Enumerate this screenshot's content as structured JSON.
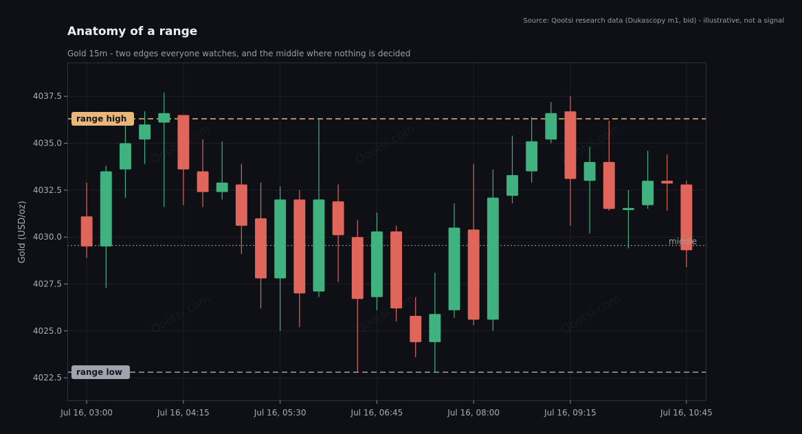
{
  "colors": {
    "background": "#0e1015",
    "grid": "#1c2028",
    "frame": "#2e323a",
    "up": "#3fb27f",
    "down": "#e0655a",
    "range_high": "#e9b779",
    "range_low": "#9ea3ad",
    "middle": "#8a8f98"
  },
  "chart_data": {
    "type": "candlestick",
    "title": "Anatomy of a range",
    "subtitle": "Gold 15m - two edges everyone watches, and the middle where nothing is decided",
    "source": "Source: Qootsi research data (Dukascopy m1, bid) - illustrative, not a signal",
    "ylabel": "Gold (USD/oz)",
    "xlabel": "",
    "watermark": "Qootsi.com",
    "ylim": [
      4021.3,
      4039.3
    ],
    "y_ticks": [
      4022.5,
      4025.0,
      4027.5,
      4030.0,
      4032.5,
      4035.0,
      4037.5
    ],
    "x_tick_labels": [
      "Jul 16, 03:00",
      "Jul 16, 04:15",
      "Jul 16, 05:30",
      "Jul 16, 06:45",
      "Jul 16, 08:00",
      "Jul 16, 09:15",
      "Jul 16, 10:45"
    ],
    "x_tick_index": [
      0,
      5,
      10,
      15,
      20,
      25,
      31
    ],
    "x_range": [
      -1.0,
      32.0
    ],
    "grid": true,
    "levels": {
      "range_high": {
        "label": "range high",
        "value": 4036.3
      },
      "range_low": {
        "label": "range low",
        "value": 4022.8
      },
      "middle": {
        "label": "middle",
        "value": 4029.55
      }
    },
    "candles": [
      {
        "t": "Jul 16, 03:00",
        "o": 4031.1,
        "h": 4032.9,
        "l": 4028.9,
        "c": 4029.5
      },
      {
        "t": "Jul 16, 03:15",
        "o": 4029.5,
        "h": 4033.8,
        "l": 4027.3,
        "c": 4033.5
      },
      {
        "t": "Jul 16, 03:30",
        "o": 4033.6,
        "h": 4036.4,
        "l": 4032.1,
        "c": 4035.0
      },
      {
        "t": "Jul 16, 03:45",
        "o": 4035.2,
        "h": 4036.7,
        "l": 4033.9,
        "c": 4036.0
      },
      {
        "t": "Jul 16, 04:00",
        "o": 4036.1,
        "h": 4037.7,
        "l": 4031.6,
        "c": 4036.6
      },
      {
        "t": "Jul 16, 04:15",
        "o": 4036.5,
        "h": 4036.5,
        "l": 4031.7,
        "c": 4033.6
      },
      {
        "t": "Jul 16, 04:30",
        "o": 4033.5,
        "h": 4035.2,
        "l": 4031.6,
        "c": 4032.4
      },
      {
        "t": "Jul 16, 04:45",
        "o": 4032.4,
        "h": 4035.1,
        "l": 4032.0,
        "c": 4032.9
      },
      {
        "t": "Jul 16, 05:00",
        "o": 4032.8,
        "h": 4033.9,
        "l": 4029.1,
        "c": 4030.6
      },
      {
        "t": "Jul 16, 05:15",
        "o": 4031.0,
        "h": 4032.9,
        "l": 4026.2,
        "c": 4027.8
      },
      {
        "t": "Jul 16, 05:30",
        "o": 4027.8,
        "h": 4032.7,
        "l": 4025.0,
        "c": 4032.0
      },
      {
        "t": "Jul 16, 05:45",
        "o": 4032.0,
        "h": 4032.5,
        "l": 4025.2,
        "c": 4027.0
      },
      {
        "t": "Jul 16, 06:00",
        "o": 4027.1,
        "h": 4036.3,
        "l": 4026.8,
        "c": 4032.0
      },
      {
        "t": "Jul 16, 06:15",
        "o": 4031.9,
        "h": 4032.8,
        "l": 4027.6,
        "c": 4030.1
      },
      {
        "t": "Jul 16, 06:30",
        "o": 4030.0,
        "h": 4030.9,
        "l": 4022.8,
        "c": 4026.7
      },
      {
        "t": "Jul 16, 06:45",
        "o": 4026.8,
        "h": 4031.3,
        "l": 4026.1,
        "c": 4030.3
      },
      {
        "t": "Jul 16, 07:00",
        "o": 4030.3,
        "h": 4030.6,
        "l": 4025.5,
        "c": 4026.2
      },
      {
        "t": "Jul 16, 07:15",
        "o": 4025.8,
        "h": 4026.8,
        "l": 4023.6,
        "c": 4024.4
      },
      {
        "t": "Jul 16, 07:30",
        "o": 4024.4,
        "h": 4028.1,
        "l": 4022.8,
        "c": 4025.9
      },
      {
        "t": "Jul 16, 07:45",
        "o": 4026.1,
        "h": 4031.8,
        "l": 4025.7,
        "c": 4030.5
      },
      {
        "t": "Jul 16, 08:00",
        "o": 4030.4,
        "h": 4033.9,
        "l": 4025.3,
        "c": 4025.6
      },
      {
        "t": "Jul 16, 08:15",
        "o": 4025.6,
        "h": 4033.6,
        "l": 4025.0,
        "c": 4032.1
      },
      {
        "t": "Jul 16, 08:30",
        "o": 4032.2,
        "h": 4035.4,
        "l": 4031.8,
        "c": 4033.3
      },
      {
        "t": "Jul 16, 08:45",
        "o": 4033.5,
        "h": 4036.4,
        "l": 4032.9,
        "c": 4035.1
      },
      {
        "t": "Jul 16, 09:00",
        "o": 4035.2,
        "h": 4037.2,
        "l": 4035.0,
        "c": 4036.6
      },
      {
        "t": "Jul 16, 09:15",
        "o": 4036.7,
        "h": 4037.5,
        "l": 4030.6,
        "c": 4033.1
      },
      {
        "t": "Jul 16, 09:30",
        "o": 4033.0,
        "h": 4034.8,
        "l": 4030.2,
        "c": 4034.0
      },
      {
        "t": "Jul 16, 09:45",
        "o": 4034.0,
        "h": 4036.2,
        "l": 4031.4,
        "c": 4031.5
      },
      {
        "t": "Jul 16, 10:00",
        "o": 4031.45,
        "h": 4032.5,
        "l": 4029.4,
        "c": 4031.55
      },
      {
        "t": "Jul 16, 10:15",
        "o": 4031.7,
        "h": 4034.6,
        "l": 4031.5,
        "c": 4033.0
      },
      {
        "t": "Jul 16, 10:30",
        "o": 4033.0,
        "h": 4034.4,
        "l": 4031.4,
        "c": 4032.85
      },
      {
        "t": "Jul 16, 10:45",
        "o": 4032.8,
        "h": 4033.0,
        "l": 4028.4,
        "c": 4029.3
      }
    ]
  }
}
